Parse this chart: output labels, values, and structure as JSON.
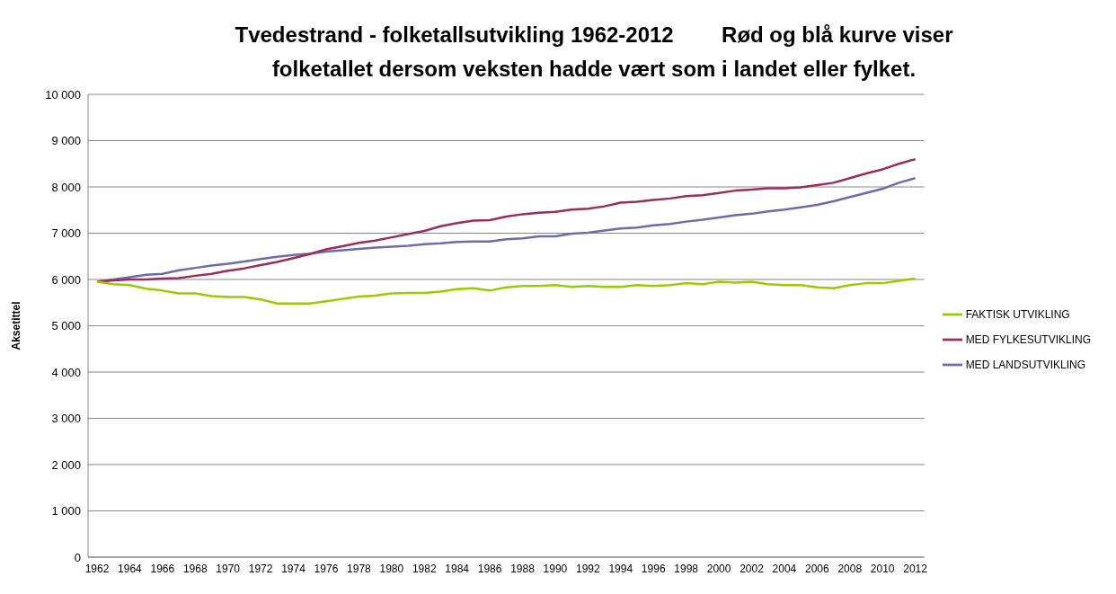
{
  "chart_data": {
    "type": "line",
    "title": "Tvedestrand - folketallsutvikling 1962-2012        Rød og blå kurve viser\nfolketallet dersom veksten hadde vært som i landet eller fylket.",
    "ylabel": "Aksetittel",
    "categories": [
      "1962",
      null,
      "1964",
      null,
      "1966",
      null,
      "1968",
      null,
      "1970",
      null,
      "1972",
      null,
      "1974",
      null,
      "1976",
      null,
      "1978",
      null,
      "1980",
      null,
      "1982",
      null,
      "1984",
      null,
      "1986",
      null,
      "1988",
      null,
      "1990",
      null,
      "1992",
      null,
      "1994",
      null,
      "1996",
      null,
      "1998",
      null,
      "2000",
      null,
      "2002",
      null,
      "2004",
      null,
      "2006",
      null,
      "2008",
      null,
      "2010",
      null,
      "2012"
    ],
    "series": [
      {
        "name": "MED LANDSUTVIKLING",
        "color": "#6c6ca8",
        "values": [
          5950,
          6000,
          6050,
          6100,
          6120,
          6200,
          6250,
          6300,
          6340,
          6390,
          6440,
          6490,
          6530,
          6560,
          6600,
          6630,
          6660,
          6690,
          6710,
          6730,
          6760,
          6780,
          6810,
          6820,
          6820,
          6870,
          6890,
          6930,
          6930,
          6990,
          7010,
          7060,
          7100,
          7120,
          7170,
          7200,
          7250,
          7290,
          7340,
          7390,
          7420,
          7470,
          7510,
          7560,
          7610,
          7690,
          7780,
          7870,
          7960,
          8090,
          8190
        ]
      },
      {
        "name": "MED FYLKESUTVIKLING",
        "color": "#9b2c5c",
        "values": [
          5950,
          5980,
          6000,
          6000,
          6020,
          6030,
          6080,
          6120,
          6190,
          6240,
          6310,
          6380,
          6460,
          6550,
          6650,
          6720,
          6790,
          6840,
          6910,
          6980,
          7050,
          7150,
          7220,
          7270,
          7280,
          7360,
          7410,
          7440,
          7460,
          7510,
          7530,
          7580,
          7660,
          7680,
          7720,
          7750,
          7800,
          7820,
          7870,
          7920,
          7940,
          7970,
          7970,
          7990,
          8040,
          8090,
          8190,
          8290,
          8380,
          8500,
          8600
        ]
      },
      {
        "name": "FAKTISK UTVIKLING",
        "color": "#99cc00",
        "values": [
          5950,
          5900,
          5880,
          5800,
          5760,
          5700,
          5700,
          5640,
          5620,
          5620,
          5570,
          5480,
          5480,
          5480,
          5530,
          5580,
          5630,
          5650,
          5700,
          5710,
          5710,
          5740,
          5790,
          5810,
          5760,
          5830,
          5860,
          5860,
          5880,
          5840,
          5860,
          5840,
          5840,
          5880,
          5860,
          5880,
          5920,
          5900,
          5950,
          5930,
          5950,
          5900,
          5880,
          5880,
          5830,
          5810,
          5880,
          5920,
          5920,
          5970,
          6020
        ]
      }
    ],
    "ylim": [
      0,
      10000
    ],
    "yticks": [
      0,
      {
        "value": 1000,
        "label": "1 000"
      },
      {
        "value": 2000,
        "label": "2 000"
      },
      {
        "value": 3000,
        "label": "3 000"
      },
      {
        "value": 4000,
        "label": "4 000"
      },
      {
        "value": 5000,
        "label": "5 000"
      },
      {
        "value": 6000,
        "label": "6 000"
      },
      {
        "value": 7000,
        "label": "7 000"
      },
      {
        "value": 8000,
        "label": "8 000"
      },
      {
        "value": 9000,
        "label": "9 000"
      },
      {
        "value": 10000,
        "label": "10 000"
      }
    ],
    "grid": "y",
    "legend": "right",
    "marker": "none",
    "line_style": "solid"
  }
}
